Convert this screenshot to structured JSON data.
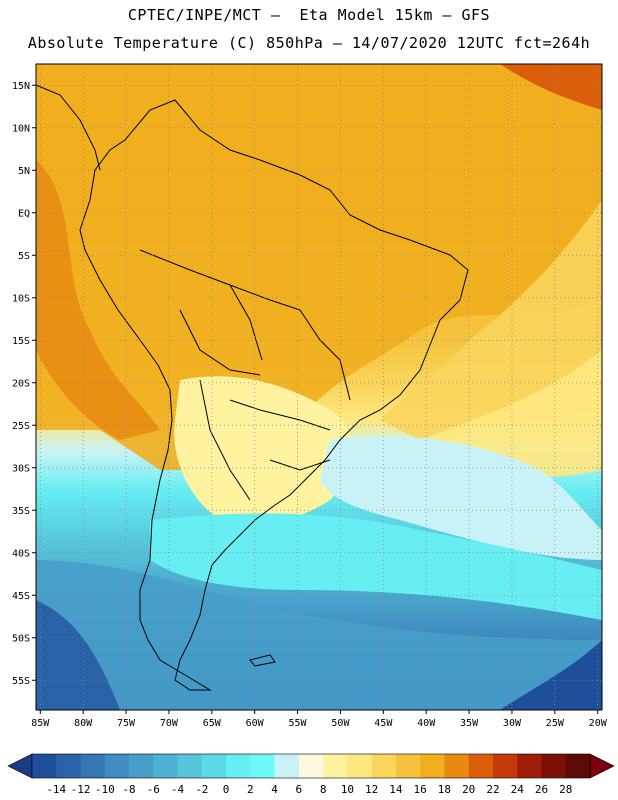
{
  "header": {
    "line1": "CPTEC/INPE/MCT –  Eta Model 15km – GFS",
    "line2": "Absolute Temperature (C) 850hPa – 14/07/2020 12UTC fct=264h"
  },
  "map": {
    "lat_labels": [
      "15N",
      "10N",
      "5N",
      "EQ",
      "5S",
      "10S",
      "15S",
      "20S",
      "25S",
      "30S",
      "35S",
      "40S",
      "45S",
      "50S",
      "55S"
    ],
    "lat_values": [
      15,
      10,
      5,
      0,
      -5,
      -10,
      -15,
      -20,
      -25,
      -30,
      -35,
      -40,
      -45,
      -50,
      -55
    ],
    "lon_labels": [
      "85W",
      "80W",
      "75W",
      "70W",
      "65W",
      "60W",
      "55W",
      "50W",
      "45W",
      "40W",
      "35W",
      "30W",
      "25W",
      "20W"
    ],
    "lon_values": [
      -85,
      -80,
      -75,
      -70,
      -65,
      -60,
      -55,
      -50,
      -45,
      -40,
      -35,
      -30,
      -25,
      -20
    ],
    "extent": {
      "lon_min": -85.5,
      "lon_max": -19.5,
      "lat_min": -58.5,
      "lat_max": 17.5
    }
  },
  "colorbar": {
    "labels": [
      "-14",
      "-12",
      "-10",
      "-8",
      "-6",
      "-4",
      "-2",
      "0",
      "2",
      "4",
      "6",
      "8",
      "10",
      "12",
      "14",
      "16",
      "18",
      "20",
      "22",
      "24",
      "26",
      "28"
    ],
    "colors": [
      "#1f4f9a",
      "#2a62a8",
      "#3577b5",
      "#3f8cc0",
      "#479fc9",
      "#4fb2d2",
      "#57c6dc",
      "#5cd8e6",
      "#66eef2",
      "#6ff8f8",
      "#c8f2f6",
      "#fff8e0",
      "#fff3a0",
      "#fde880",
      "#f9d55c",
      "#f5c23d",
      "#f1ae1e",
      "#e88a10",
      "#db5f0a",
      "#c43a08",
      "#a01e08",
      "#7c1006",
      "#5c0a06"
    ],
    "over_color": "#7a0010",
    "under_color": "#1a3a8a"
  }
}
